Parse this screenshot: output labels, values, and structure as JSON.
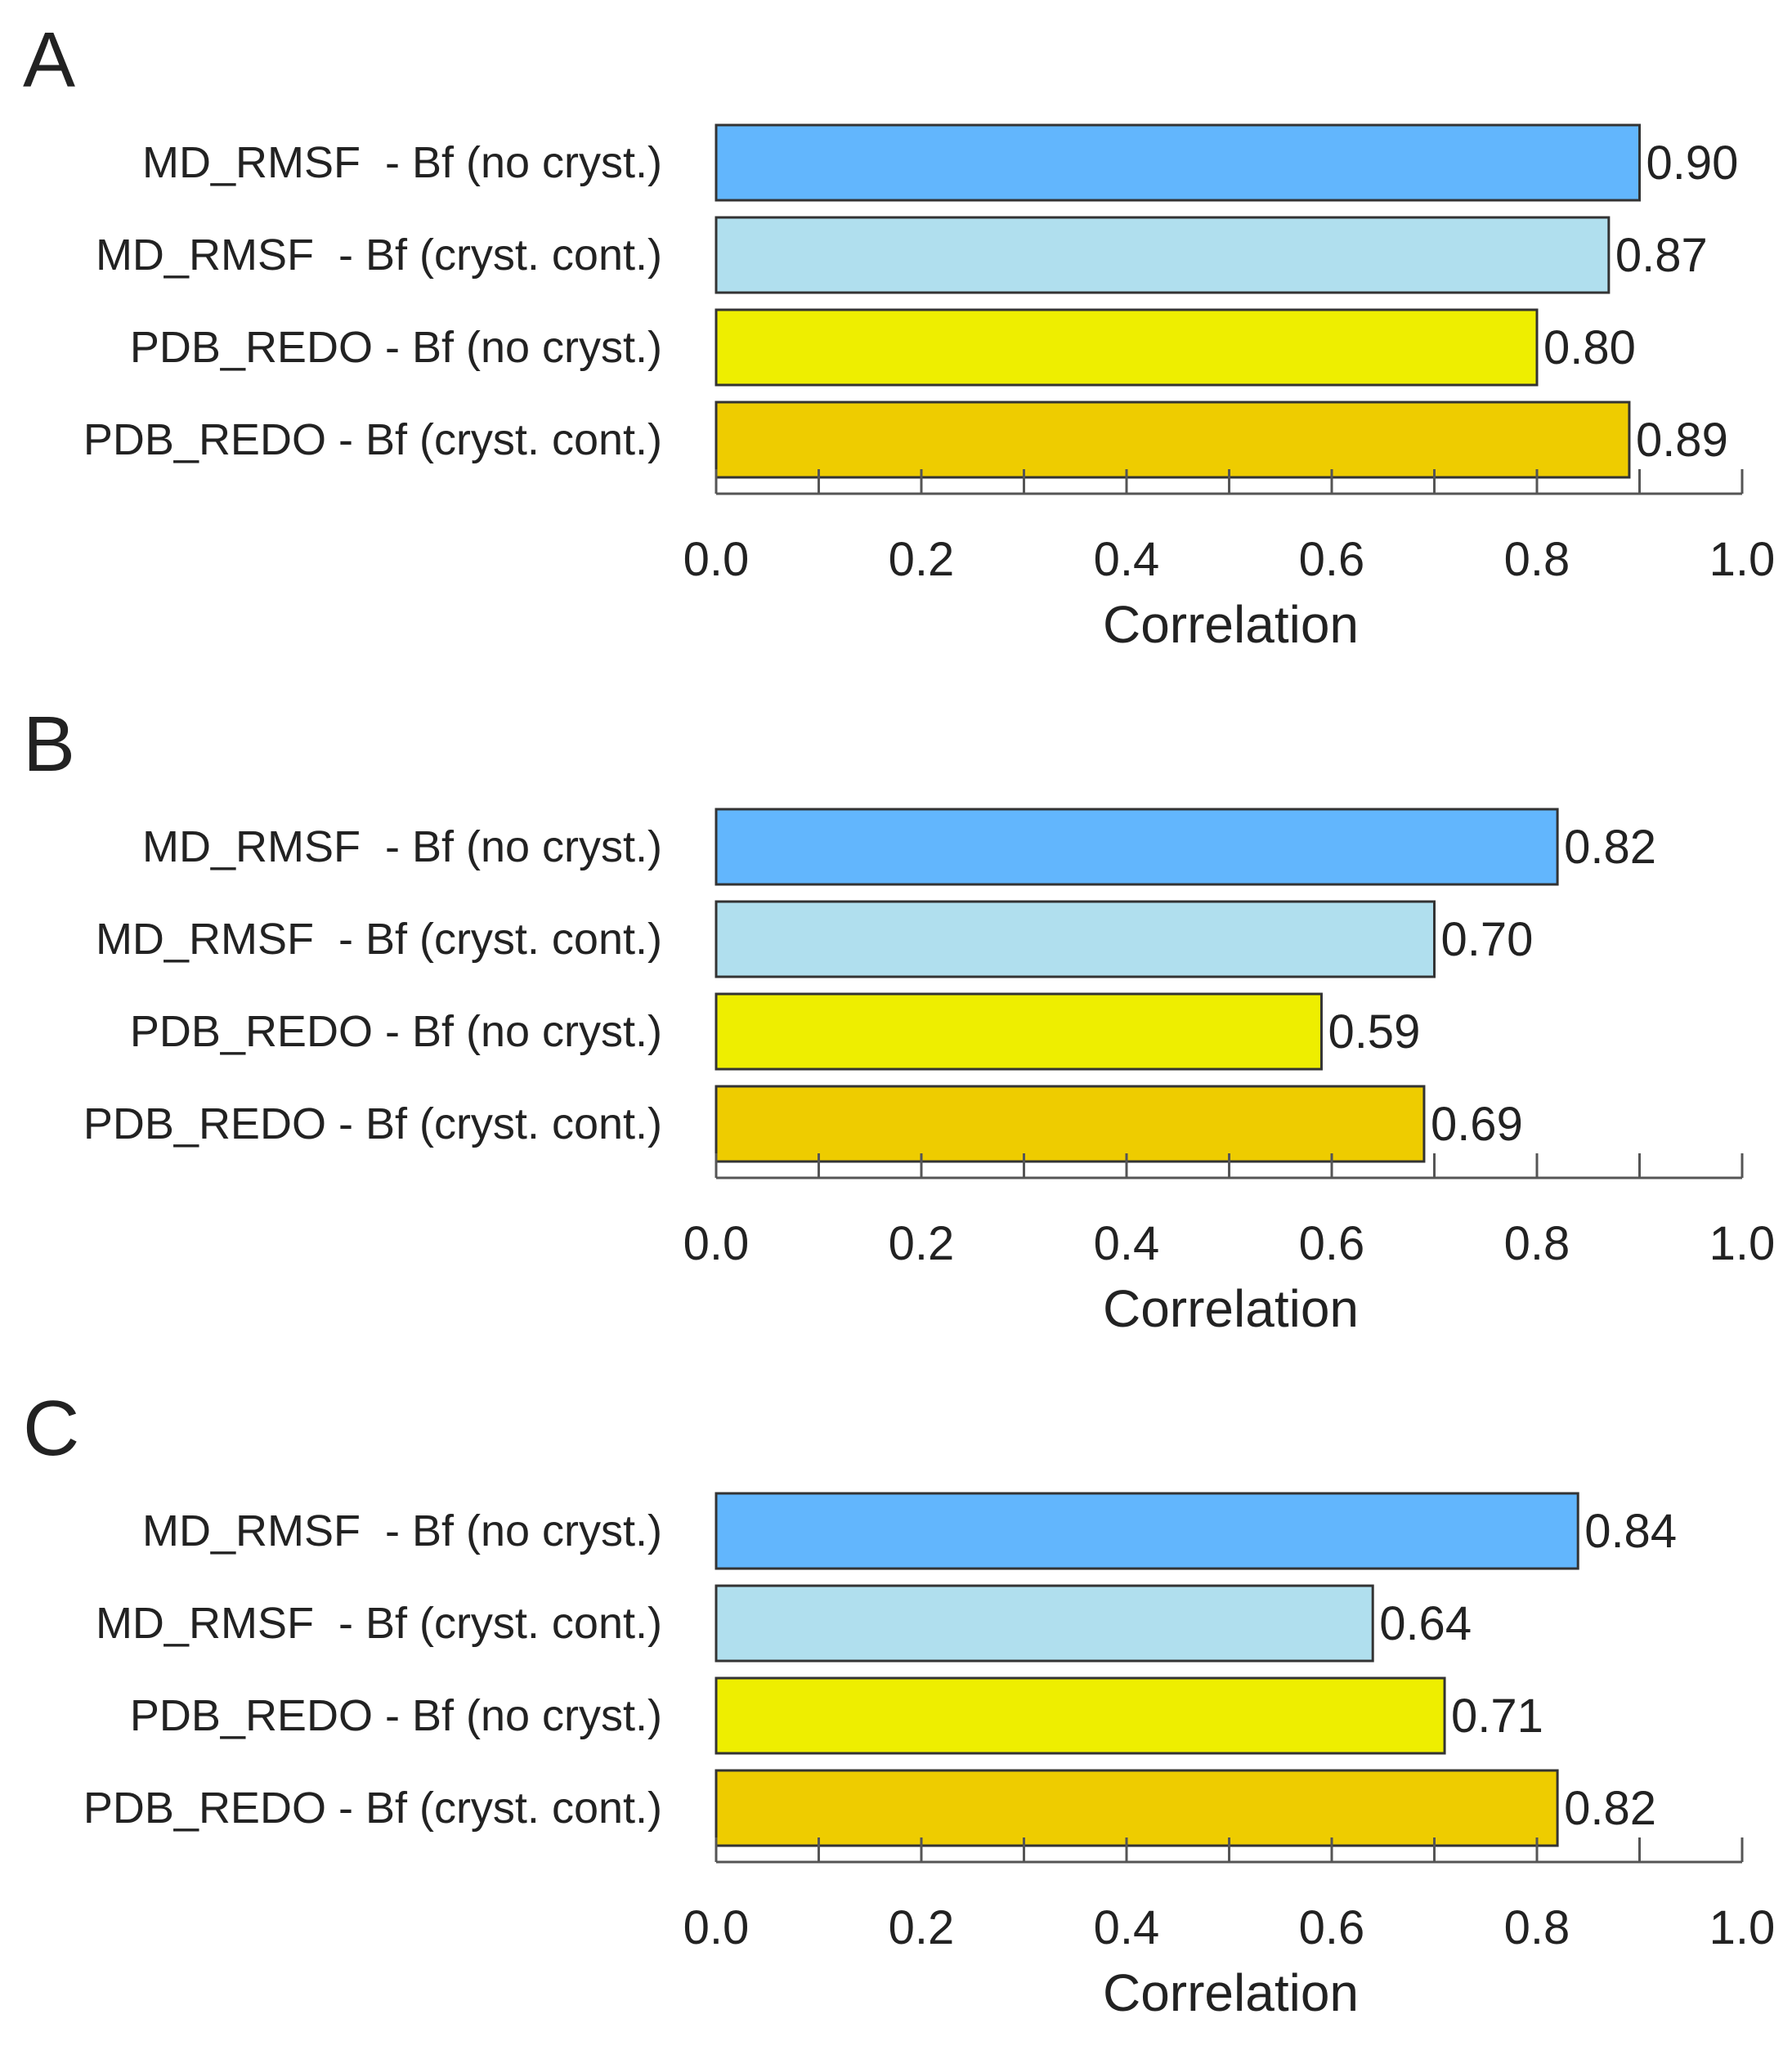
{
  "figure": {
    "colors": {
      "md_no_cryst": "#62b6fd",
      "md_cryst_cont": "#b0dfee",
      "pdb_no_cryst": "#eeee00",
      "pdb_cryst_cont": "#eecc00",
      "bar_border": "#333333",
      "axis": "#555555"
    }
  },
  "chart_data": [
    {
      "type": "bar",
      "orientation": "horizontal",
      "panel": "A",
      "categories": [
        "MD_RMSF  - Bf (no cryst.)",
        "MD_RMSF  - Bf (cryst. cont.)",
        "PDB_REDO - Bf (no cryst.)",
        "PDB_REDO - Bf (cryst. cont.)"
      ],
      "values": [
        0.9,
        0.87,
        0.8,
        0.89
      ],
      "value_labels": [
        "0.90",
        "0.87",
        "0.80",
        "0.89"
      ],
      "xlabel": "Correlation",
      "xlim": [
        0.0,
        1.0
      ],
      "major_ticks": [
        0.0,
        0.2,
        0.4,
        0.6,
        0.8,
        1.0
      ],
      "tick_labels": [
        "0.0",
        "0.2",
        "0.4",
        "0.6",
        "0.8",
        "1.0"
      ],
      "minor_ticks": [
        0.1,
        0.3,
        0.5,
        0.7,
        0.9
      ],
      "grid": false
    },
    {
      "type": "bar",
      "orientation": "horizontal",
      "panel": "B",
      "categories": [
        "MD_RMSF  - Bf (no cryst.)",
        "MD_RMSF  - Bf (cryst. cont.)",
        "PDB_REDO - Bf (no cryst.)",
        "PDB_REDO - Bf (cryst. cont.)"
      ],
      "values": [
        0.82,
        0.7,
        0.59,
        0.69
      ],
      "value_labels": [
        "0.82",
        "0.70",
        "0.59",
        "0.69"
      ],
      "xlabel": "Correlation",
      "xlim": [
        0.0,
        1.0
      ],
      "major_ticks": [
        0.0,
        0.2,
        0.4,
        0.6,
        0.8,
        1.0
      ],
      "tick_labels": [
        "0.0",
        "0.2",
        "0.4",
        "0.6",
        "0.8",
        "1.0"
      ],
      "minor_ticks": [
        0.1,
        0.3,
        0.5,
        0.7,
        0.9
      ],
      "grid": false
    },
    {
      "type": "bar",
      "orientation": "horizontal",
      "panel": "C",
      "categories": [
        "MD_RMSF  - Bf (no cryst.)",
        "MD_RMSF  - Bf (cryst. cont.)",
        "PDB_REDO - Bf (no cryst.)",
        "PDB_REDO - Bf (cryst. cont.)"
      ],
      "values": [
        0.84,
        0.64,
        0.71,
        0.82
      ],
      "value_labels": [
        "0.84",
        "0.64",
        "0.71",
        "0.82"
      ],
      "xlabel": "Correlation",
      "xlim": [
        0.0,
        1.0
      ],
      "major_ticks": [
        0.0,
        0.2,
        0.4,
        0.6,
        0.8,
        1.0
      ],
      "tick_labels": [
        "0.0",
        "0.2",
        "0.4",
        "0.6",
        "0.8",
        "1.0"
      ],
      "minor_ticks": [
        0.1,
        0.3,
        0.5,
        0.7,
        0.9
      ],
      "grid": false
    }
  ]
}
